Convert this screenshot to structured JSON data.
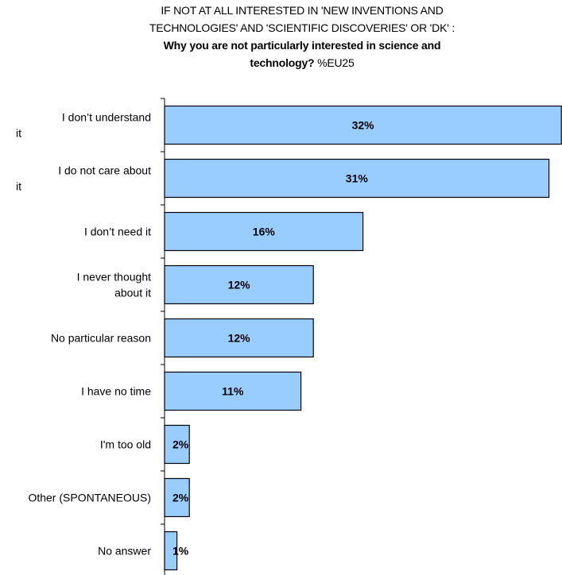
{
  "title": {
    "line1": "IF NOT AT ALL INTERESTED IN 'NEW INVENTIONS AND",
    "line2": "TECHNOLOGIES' AND 'SCIENTIFIC DISCOVERIES' OR 'DK' :",
    "line3": "Why you are not particularly interested in science and",
    "line4_bold": "technology?",
    "line4_suffix": " %EU25"
  },
  "chart_data": {
    "type": "bar",
    "orientation": "horizontal",
    "categories": [
      "I don’t understand it",
      "I do not care about it",
      "I don’t need it",
      "I never thought about it",
      "No particular reason",
      "I have no time",
      "I'm too old",
      "Other (SPONTANEOUS)",
      "No answer"
    ],
    "values": [
      32,
      31,
      16,
      12,
      12,
      11,
      2,
      2,
      1
    ],
    "value_labels": [
      "32%",
      "31%",
      "16%",
      "12%",
      "12%",
      "11%",
      "2%",
      "2%",
      "1%"
    ],
    "xlabel": "",
    "ylabel": "",
    "grid": false,
    "colors": {
      "bar_fill": "#99ccff",
      "bar_stroke": "#000000"
    }
  }
}
